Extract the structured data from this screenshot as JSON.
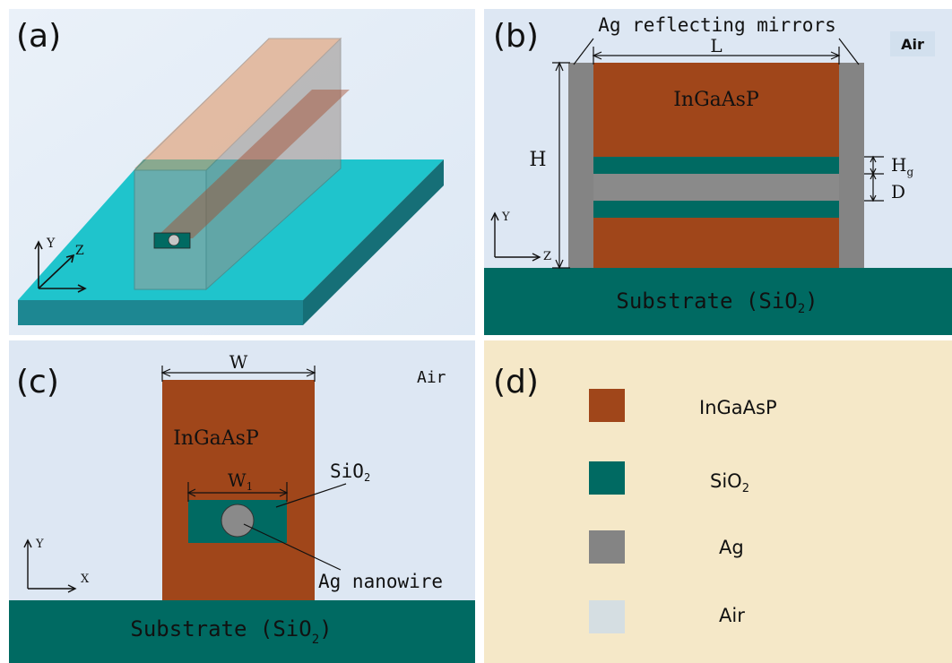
{
  "panels": {
    "a": {
      "label": "(a)",
      "axis_y": "Y",
      "axis_z": "Z"
    },
    "b": {
      "label": "(b)",
      "mirror_label": "Ag reflecting mirrors",
      "air_label": "Air",
      "dim_L": "L",
      "dim_H": "H",
      "dim_Hg": "H",
      "dim_Hg_sub": "g",
      "dim_D": "D",
      "material_label": "InGaAsP",
      "substrate_label": "Substrate (SiO",
      "substrate_sub": "2",
      "substrate_close": ")",
      "axis_y": "Y",
      "axis_z": "Z"
    },
    "c": {
      "label": "(c)",
      "dim_W": "W",
      "dim_W1": "W",
      "dim_W1_sub": "1",
      "air_label": "Air",
      "material_label": "InGaAsP",
      "sio2_label": "SiO",
      "sio2_sub": "2",
      "nanowire_label": "Ag nanowire",
      "substrate_label": "Substrate (SiO",
      "substrate_sub": "2",
      "substrate_close": ")",
      "axis_y": "Y",
      "axis_x": "X"
    },
    "d": {
      "label": "(d)",
      "legend": [
        {
          "name": "InGaAsP",
          "sub": "",
          "color": "#a0461a"
        },
        {
          "name": "SiO",
          "sub": "2",
          "color": "#006a62"
        },
        {
          "name": "Ag",
          "sub": "",
          "color": "#848484"
        },
        {
          "name": "Air",
          "sub": "",
          "color": "#d5dee2"
        }
      ]
    }
  },
  "colors": {
    "ingaasp": "#a0461a",
    "sio2": "#006a62",
    "ag": "#848484",
    "air_bg": "#dde7f3",
    "legend_bg": "#f5e8c8",
    "slab_top": "#1fc4cc",
    "slab_side": "#1c8b94"
  }
}
